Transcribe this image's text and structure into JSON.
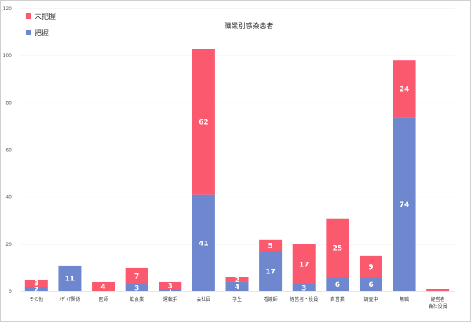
{
  "chart_data": {
    "type": "bar",
    "stacked": true,
    "title": "職業別感染患者",
    "xlabel": "",
    "ylabel": "",
    "ylim": [
      0,
      120
    ],
    "yticks": [
      0,
      20,
      40,
      60,
      80,
      100,
      120
    ],
    "grid": true,
    "legend_position": "top-left",
    "categories": [
      "その他",
      "ﾒﾃﾞｨｱ関係",
      "医師",
      "飲食業",
      "運転手",
      "会社員",
      "学生",
      "看護師",
      "経営者・役員",
      "自営業",
      "調査中",
      "無職",
      "経営者\n会社役員"
    ],
    "series": [
      {
        "name": "把握",
        "color": "#6f87cf",
        "values": [
          2,
          11,
          0,
          3,
          1,
          41,
          4,
          17,
          3,
          6,
          6,
          74,
          0
        ],
        "labels": [
          "2",
          "11",
          "",
          "3",
          "1",
          "41",
          "4",
          "17",
          "3",
          "6",
          "6",
          "74",
          ""
        ]
      },
      {
        "name": "未把握",
        "color": "#fb5a6e",
        "values": [
          3,
          0,
          4,
          7,
          3,
          62,
          2,
          5,
          17,
          25,
          9,
          24,
          1
        ],
        "labels": [
          "3",
          "",
          "4",
          "7",
          "3",
          "62",
          "2",
          "5",
          "17",
          "25",
          "9",
          "24",
          ""
        ]
      }
    ]
  }
}
